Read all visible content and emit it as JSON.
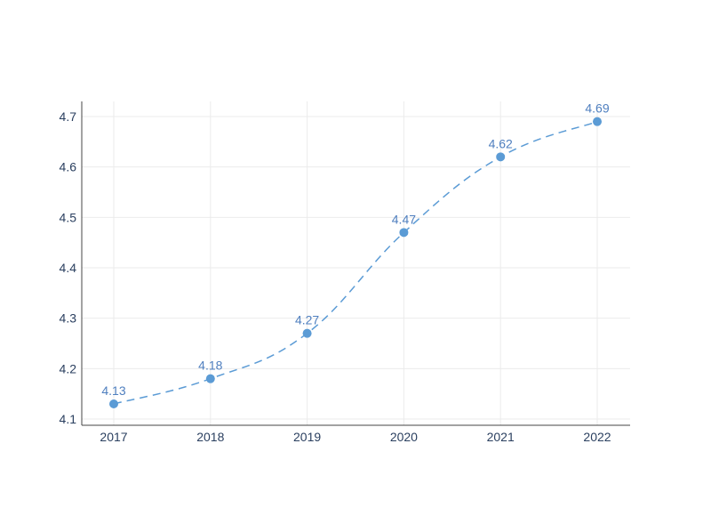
{
  "chart_data": {
    "type": "line",
    "title": "",
    "xlabel": "",
    "ylabel": "",
    "x": [
      "2017",
      "2018",
      "2019",
      "2020",
      "2021",
      "2022"
    ],
    "series": [
      {
        "values": [
          4.13,
          4.18,
          4.27,
          4.47,
          4.62,
          4.69
        ],
        "labels": [
          "4.13",
          "4.18",
          "4.27",
          "4.47",
          "4.62",
          "4.69"
        ]
      }
    ],
    "yticks": [
      "4.1",
      "4.2",
      "4.3",
      "4.4",
      "4.5",
      "4.6",
      "4.7"
    ],
    "ylim": [
      4.1,
      4.7
    ],
    "grid": true,
    "line_style": "dashed",
    "line_shape": "smooth",
    "colors": {
      "series": "#5b9bd5",
      "label": "#4f7fbf",
      "axis": "#2a3f5f",
      "grid": "#ebebeb",
      "axis_line": "#444444"
    }
  }
}
